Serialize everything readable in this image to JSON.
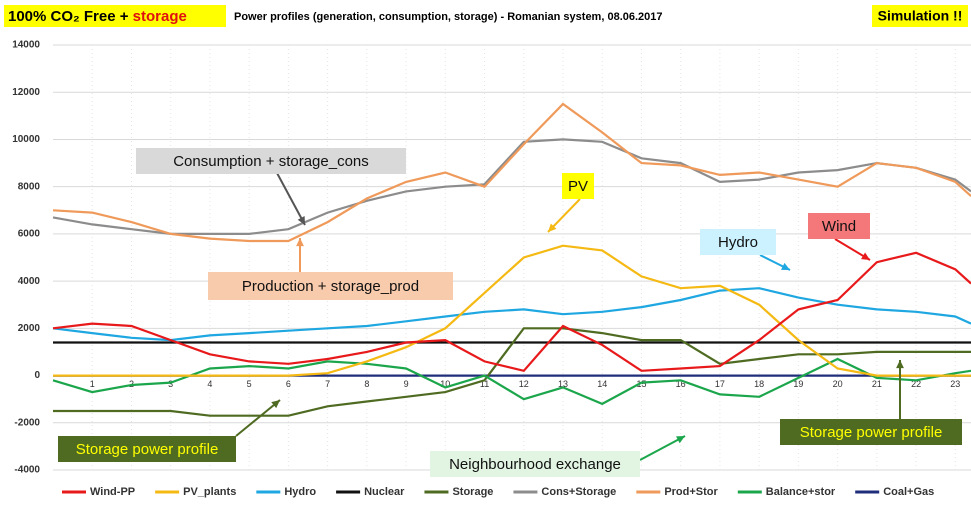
{
  "chart_data": {
    "type": "line",
    "title": "100% CO₂ Free +",
    "title_highlight": "storage",
    "subtitle": "Power profiles (generation, consumption, storage) - Romanian system, 08.06.2017",
    "badge": "Simulation !!",
    "x": [
      0,
      1,
      2,
      3,
      4,
      5,
      6,
      7,
      8,
      9,
      10,
      11,
      12,
      13,
      14,
      15,
      16,
      17,
      18,
      19,
      20,
      21,
      22,
      23,
      23.4
    ],
    "xlim": [
      0,
      23.4
    ],
    "xticks": [
      1,
      2,
      3,
      4,
      5,
      6,
      7,
      8,
      9,
      10,
      11,
      12,
      13,
      14,
      15,
      16,
      17,
      18,
      19,
      20,
      21,
      22,
      23
    ],
    "ylim": [
      -4000,
      14000
    ],
    "yticks": [
      -4000,
      -2000,
      0,
      2000,
      4000,
      6000,
      8000,
      10000,
      12000,
      14000
    ],
    "grid": true,
    "legend": "bottom",
    "series": [
      {
        "name": "Wind-PP",
        "color": "#e8191b",
        "values": [
          2000,
          2200,
          2100,
          1500,
          900,
          600,
          500,
          700,
          1000,
          1400,
          1500,
          600,
          200,
          2100,
          1300,
          200,
          300,
          400,
          1500,
          2800,
          3200,
          4800,
          5200,
          4500,
          3900
        ]
      },
      {
        "name": "PV_plants",
        "color": "#f5b914",
        "values": [
          0,
          0,
          0,
          0,
          0,
          0,
          0,
          100,
          600,
          1200,
          2000,
          3500,
          5000,
          5500,
          5300,
          4200,
          3700,
          3800,
          3000,
          1500,
          300,
          0,
          0,
          0,
          0
        ]
      },
      {
        "name": "Hydro",
        "color": "#1ea7e1",
        "values": [
          2000,
          1800,
          1600,
          1500,
          1700,
          1800,
          1900,
          2000,
          2100,
          2300,
          2500,
          2700,
          2800,
          2600,
          2700,
          2900,
          3200,
          3600,
          3700,
          3300,
          3000,
          2800,
          2700,
          2500,
          2200
        ]
      },
      {
        "name": "Nuclear",
        "color": "#111111",
        "values": [
          1400,
          1400,
          1400,
          1400,
          1400,
          1400,
          1400,
          1400,
          1400,
          1400,
          1400,
          1400,
          1400,
          1400,
          1400,
          1400,
          1400,
          1400,
          1400,
          1400,
          1400,
          1400,
          1400,
          1400,
          1400
        ]
      },
      {
        "name": "Storage",
        "color": "#4f6b22",
        "values": [
          -1500,
          -1500,
          -1500,
          -1500,
          -1700,
          -1700,
          -1700,
          -1300,
          -1100,
          -900,
          -700,
          -200,
          2000,
          2000,
          1800,
          1500,
          1500,
          500,
          700,
          900,
          900,
          1000,
          1000,
          1000,
          1000
        ]
      },
      {
        "name": "Cons+Storage",
        "color": "#8c8c8c",
        "values": [
          6700,
          6400,
          6200,
          6000,
          6000,
          6000,
          6200,
          6900,
          7400,
          7800,
          8000,
          8100,
          9900,
          10000,
          9900,
          9200,
          9000,
          8200,
          8300,
          8600,
          8700,
          9000,
          8800,
          8300,
          7800
        ]
      },
      {
        "name": "Prod+Stor",
        "color": "#ef9a5a",
        "values": [
          7000,
          6900,
          6500,
          6000,
          5800,
          5700,
          5700,
          6500,
          7500,
          8200,
          8600,
          8000,
          9800,
          11500,
          10300,
          9000,
          8900,
          8500,
          8600,
          8300,
          8000,
          9000,
          8800,
          8200,
          7600
        ]
      },
      {
        "name": "Balance+stor",
        "color": "#1ca64c",
        "values": [
          -200,
          -700,
          -400,
          -300,
          300,
          400,
          300,
          600,
          500,
          300,
          -500,
          0,
          -1000,
          -500,
          -1200,
          -300,
          -200,
          -800,
          -900,
          -100,
          700,
          -100,
          -200,
          100,
          200
        ]
      },
      {
        "name": "Coal+Gas",
        "color": "#1f2d7a",
        "values": [
          0,
          0,
          0,
          0,
          0,
          0,
          0,
          0,
          0,
          0,
          0,
          0,
          0,
          0,
          0,
          0,
          0,
          0,
          0,
          0,
          0,
          0,
          0,
          0,
          0
        ]
      }
    ],
    "annotations": [
      {
        "text": "Consumption + storage_cons",
        "color": "#d9d9d9"
      },
      {
        "text": "Production + storage_prod",
        "color": "#f8cbad"
      },
      {
        "text": "PV",
        "color": "#ffff00"
      },
      {
        "text": "Hydro",
        "color": "#ccf2ff"
      },
      {
        "text": "Wind",
        "color": "#f4777a"
      },
      {
        "text": "Storage power profile",
        "color": "#4f6b22"
      },
      {
        "text": "Storage power profile",
        "color": "#4f6b22"
      },
      {
        "text": "Neighbourhood exchange",
        "color": "#e2f5e3"
      }
    ]
  }
}
